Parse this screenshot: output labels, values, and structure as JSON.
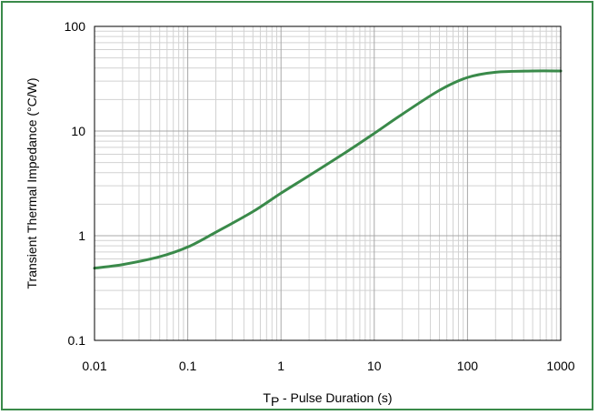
{
  "chart_data": {
    "type": "line",
    "title": "",
    "xlabel_main": "T",
    "xlabel_sub": "P",
    "xlabel_rest": " - Pulse Duration (s)",
    "ylabel": "Transient Thermal Impedance  (°C/W)",
    "x_scale": "log",
    "y_scale": "log",
    "xlim": [
      0.01,
      1000
    ],
    "ylim": [
      0.1,
      100
    ],
    "grid": true,
    "x_ticks": [
      "0.01",
      "0.1",
      "1",
      "10",
      "100",
      "1000"
    ],
    "y_ticks": [
      "0.1",
      "1",
      "10",
      "100"
    ],
    "series": [
      {
        "color": "#3a8a4a",
        "x": [
          0.01,
          0.02,
          0.05,
          0.1,
          0.2,
          0.5,
          1,
          2,
          5,
          10,
          20,
          50,
          100,
          200,
          500,
          1000
        ],
        "y": [
          0.49,
          0.53,
          0.63,
          0.78,
          1.08,
          1.7,
          2.55,
          3.75,
          6.3,
          9.5,
          14.5,
          24.5,
          32.5,
          36.5,
          37.5,
          37.5
        ]
      }
    ]
  }
}
